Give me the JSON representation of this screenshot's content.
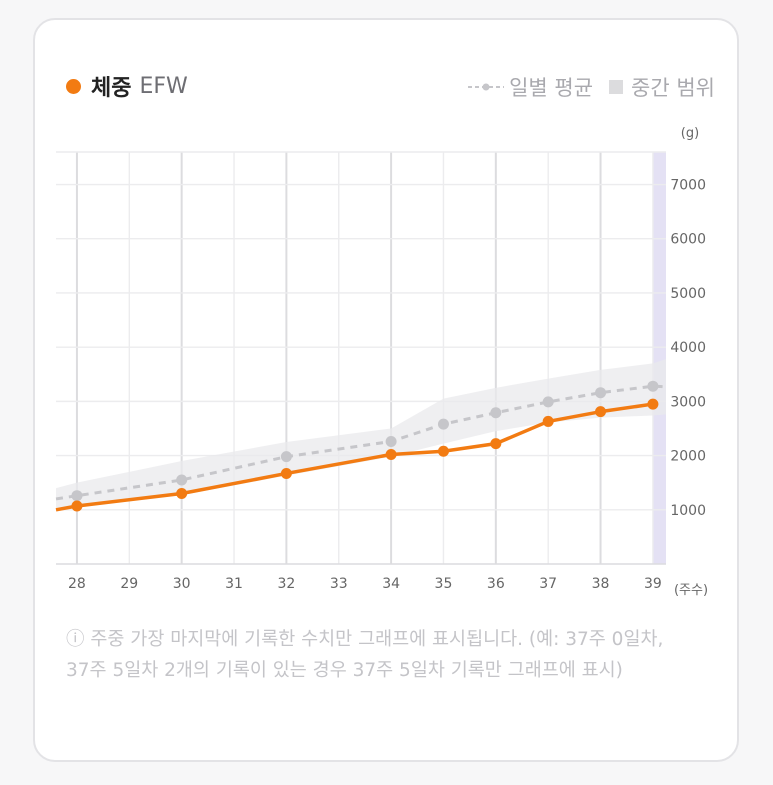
{
  "legend": {
    "main_title": "체중",
    "main_sub": "EFW",
    "daily_avg_label": "일별 평균",
    "median_range_label": "중간 범위"
  },
  "colors": {
    "efw_line": "#f27b12",
    "daily_avg": "#c6c6ca",
    "median_band": "#e9e9ec",
    "current_week": "#e4e1f4"
  },
  "chart_data": {
    "type": "line",
    "x": [
      27.6,
      28,
      29,
      30,
      31,
      32,
      33,
      34,
      35,
      36,
      37,
      38,
      39,
      39.25
    ],
    "x_ticks": [
      28,
      29,
      30,
      31,
      32,
      33,
      34,
      35,
      36,
      37,
      38,
      39
    ],
    "xlabel": "(주수)",
    "ylabel": "(g)",
    "y_ticks": [
      1000,
      2000,
      3000,
      4000,
      5000,
      6000,
      7000
    ],
    "xlim": [
      27.6,
      39.25
    ],
    "ylim": [
      0,
      7600
    ],
    "grid": true,
    "highlight_week": 39,
    "series": [
      {
        "name": "체중 EFW",
        "x": [
          27.6,
          28,
          30,
          32,
          34,
          35,
          36,
          37,
          38,
          39
        ],
        "values": [
          1000,
          1070,
          1300,
          1670,
          2020,
          2080,
          2220,
          2630,
          2810,
          2950
        ],
        "marker_x": [
          28,
          30,
          32,
          34,
          35,
          36,
          37,
          38,
          39
        ]
      },
      {
        "name": "일별 평균",
        "x": [
          27.6,
          28,
          30,
          32,
          34,
          35,
          36,
          37,
          38,
          39,
          39.25
        ],
        "values": [
          1200,
          1260,
          1550,
          1980,
          2260,
          2580,
          2790,
          2990,
          3160,
          3280,
          3270
        ],
        "marker_x": [
          28,
          30,
          32,
          34,
          35,
          36,
          37,
          38,
          39
        ]
      }
    ],
    "median_band": {
      "x": [
        27.6,
        28,
        30,
        32,
        34,
        35,
        36,
        37,
        38,
        39,
        39.25
      ],
      "upper": [
        1400,
        1500,
        1900,
        2250,
        2500,
        3050,
        3250,
        3420,
        3580,
        3700,
        3780
      ],
      "lower": [
        1000,
        1060,
        1270,
        1630,
        1980,
        2220,
        2450,
        2610,
        2700,
        2740,
        2760
      ]
    }
  },
  "note": "ⓘ 주중 가장 마지막에 기록한 수치만 그래프에 표시됩니다. (예: 37주 0일차, 37주 5일차 2개의 기록이 있는 경우 37주 5일차 기록만 그래프에 표시)"
}
